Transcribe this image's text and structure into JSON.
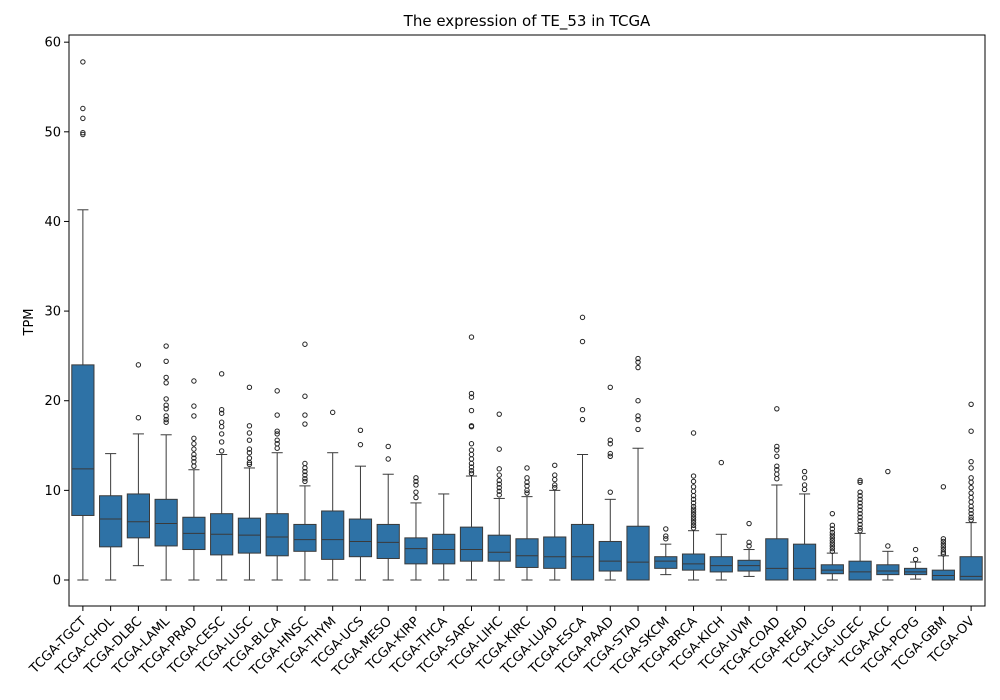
{
  "chart_data": {
    "type": "box",
    "title": "The expression of TE_53 in TCGA",
    "xlabel": "",
    "ylabel": "TPM",
    "ylim": [
      -2.9,
      60.8
    ],
    "yticks": [
      0,
      10,
      20,
      30,
      40,
      50,
      60
    ],
    "box_color": "#2e72a6",
    "grid": false,
    "categories": [
      "TCGA-TGCT",
      "TCGA-CHOL",
      "TCGA-DLBC",
      "TCGA-LAML",
      "TCGA-PRAD",
      "TCGA-CESC",
      "TCGA-LUSC",
      "TCGA-BLCA",
      "TCGA-HNSC",
      "TCGA-THYM",
      "TCGA-UCS",
      "TCGA-MESO",
      "TCGA-KIRP",
      "TCGA-THCA",
      "TCGA-SARC",
      "TCGA-LIHC",
      "TCGA-KIRC",
      "TCGA-LUAD",
      "TCGA-ESCA",
      "TCGA-PAAD",
      "TCGA-STAD",
      "TCGA-SKCM",
      "TCGA-BRCA",
      "TCGA-KICH",
      "TCGA-UVM",
      "TCGA-COAD",
      "TCGA-READ",
      "TCGA-LGG",
      "TCGA-UCEC",
      "TCGA-ACC",
      "TCGA-PCPG",
      "TCGA-GBM",
      "TCGA-OV"
    ],
    "boxes": [
      {
        "whislo": 0,
        "q1": 7.2,
        "med": 12.4,
        "q3": 24.0,
        "whishi": 41.3,
        "fliers": [
          57.8,
          52.6,
          51.5,
          49.9,
          49.7
        ]
      },
      {
        "whislo": 0,
        "q1": 3.7,
        "med": 6.8,
        "q3": 9.4,
        "whishi": 14.1,
        "fliers": []
      },
      {
        "whislo": 1.6,
        "q1": 4.7,
        "med": 6.5,
        "q3": 9.6,
        "whishi": 16.3,
        "fliers": [
          24.0,
          18.1
        ]
      },
      {
        "whislo": 0,
        "q1": 3.8,
        "med": 6.3,
        "q3": 9.0,
        "whishi": 16.2,
        "fliers": [
          26.1,
          24.4,
          22.6,
          22.0,
          20.2,
          19.5,
          19.1,
          18.3,
          17.9,
          17.6
        ]
      },
      {
        "whislo": 0,
        "q1": 3.4,
        "med": 5.2,
        "q3": 7.0,
        "whishi": 12.3,
        "fliers": [
          22.2,
          19.4,
          18.3,
          15.8,
          15.2,
          14.6,
          14.0,
          13.6,
          13.2,
          12.7
        ]
      },
      {
        "whislo": 0,
        "q1": 2.8,
        "med": 5.1,
        "q3": 7.4,
        "whishi": 14.0,
        "fliers": [
          23.0,
          19.0,
          18.6,
          17.6,
          17.1,
          16.3,
          15.4,
          14.4
        ]
      },
      {
        "whislo": 0,
        "q1": 3.0,
        "med": 5.0,
        "q3": 6.9,
        "whishi": 12.5,
        "fliers": [
          21.5,
          17.2,
          16.4,
          15.6,
          14.6,
          14.2,
          13.6,
          13.1,
          12.9
        ]
      },
      {
        "whislo": 0,
        "q1": 2.7,
        "med": 4.8,
        "q3": 7.4,
        "whishi": 14.2,
        "fliers": [
          21.1,
          18.4,
          16.6,
          16.3,
          15.6,
          15.2,
          14.7
        ]
      },
      {
        "whislo": 0,
        "q1": 3.2,
        "med": 4.5,
        "q3": 6.2,
        "whishi": 10.5,
        "fliers": [
          26.3,
          20.5,
          18.4,
          17.4,
          13.0,
          12.5,
          12.1,
          11.7,
          11.3,
          11.0
        ]
      },
      {
        "whislo": 0,
        "q1": 2.3,
        "med": 4.5,
        "q3": 7.7,
        "whishi": 14.2,
        "fliers": [
          18.7
        ]
      },
      {
        "whislo": 0,
        "q1": 2.6,
        "med": 4.3,
        "q3": 6.8,
        "whishi": 12.7,
        "fliers": [
          16.7,
          15.1
        ]
      },
      {
        "whislo": 0,
        "q1": 2.4,
        "med": 4.2,
        "q3": 6.2,
        "whishi": 11.8,
        "fliers": [
          14.9,
          13.5
        ]
      },
      {
        "whislo": 0,
        "q1": 1.8,
        "med": 3.5,
        "q3": 4.7,
        "whishi": 8.6,
        "fliers": [
          11.4,
          11.0,
          10.6,
          9.8,
          9.2
        ]
      },
      {
        "whislo": 0,
        "q1": 1.8,
        "med": 3.4,
        "q3": 5.1,
        "whishi": 9.6,
        "fliers": []
      },
      {
        "whislo": 0,
        "q1": 2.1,
        "med": 3.4,
        "q3": 5.9,
        "whishi": 11.6,
        "fliers": [
          27.1,
          20.8,
          20.4,
          18.9,
          17.2,
          17.1,
          15.2,
          14.5,
          14.0,
          13.5,
          13.0,
          12.6,
          12.2,
          11.9
        ]
      },
      {
        "whislo": 0,
        "q1": 2.1,
        "med": 3.1,
        "q3": 5.0,
        "whishi": 9.1,
        "fliers": [
          18.5,
          14.6,
          12.4,
          11.7,
          11.1,
          10.7,
          10.3,
          9.9,
          9.5
        ]
      },
      {
        "whislo": 0,
        "q1": 1.4,
        "med": 2.7,
        "q3": 4.6,
        "whishi": 9.3,
        "fliers": [
          12.5,
          11.4,
          10.9,
          10.5,
          10.0,
          9.7
        ]
      },
      {
        "whislo": 0,
        "q1": 1.3,
        "med": 2.6,
        "q3": 4.8,
        "whishi": 10.0,
        "fliers": [
          12.8,
          11.7,
          11.2,
          10.6,
          10.3
        ]
      },
      {
        "whislo": 0,
        "q1": 0,
        "med": 2.6,
        "q3": 6.2,
        "whishi": 14.0,
        "fliers": [
          29.3,
          26.6,
          19.0,
          17.9
        ]
      },
      {
        "whislo": 0,
        "q1": 1.0,
        "med": 2.1,
        "q3": 4.3,
        "whishi": 9.0,
        "fliers": [
          21.5,
          15.6,
          15.2,
          14.1,
          13.8,
          9.8
        ]
      },
      {
        "whislo": 0,
        "q1": 0,
        "med": 2.0,
        "q3": 6.0,
        "whishi": 14.7,
        "fliers": [
          24.7,
          24.3,
          23.7,
          20.0,
          18.3,
          17.9,
          16.8
        ]
      },
      {
        "whislo": 0.6,
        "q1": 1.3,
        "med": 2.1,
        "q3": 2.6,
        "whishi": 4.0,
        "fliers": [
          5.7,
          4.9,
          4.6
        ]
      },
      {
        "whislo": 0,
        "q1": 1.1,
        "med": 1.8,
        "q3": 2.9,
        "whishi": 5.5,
        "fliers": [
          16.4,
          11.6,
          11.0,
          10.4,
          9.9,
          9.4,
          9.0,
          8.6,
          8.2,
          7.9,
          7.6,
          7.3,
          7.0,
          6.7,
          6.4,
          6.1,
          5.8
        ]
      },
      {
        "whislo": 0,
        "q1": 0.9,
        "med": 1.6,
        "q3": 2.6,
        "whishi": 5.1,
        "fliers": [
          13.1
        ]
      },
      {
        "whislo": 0.4,
        "q1": 1.0,
        "med": 1.6,
        "q3": 2.2,
        "whishi": 3.4,
        "fliers": [
          6.3,
          4.2,
          3.8
        ]
      },
      {
        "whislo": 0,
        "q1": 0,
        "med": 1.3,
        "q3": 4.6,
        "whishi": 10.6,
        "fliers": [
          19.1,
          14.9,
          14.5,
          13.8,
          12.7,
          12.3,
          11.8,
          11.3
        ]
      },
      {
        "whislo": 0,
        "q1": 0,
        "med": 1.3,
        "q3": 4.0,
        "whishi": 9.6,
        "fliers": [
          12.1,
          11.4,
          10.6,
          10.1
        ]
      },
      {
        "whislo": 0,
        "q1": 0.7,
        "med": 1.1,
        "q3": 1.7,
        "whishi": 3.0,
        "fliers": [
          7.4,
          6.1,
          5.7,
          5.3,
          5.0,
          4.7,
          4.4,
          4.1,
          3.8,
          3.5,
          3.2
        ]
      },
      {
        "whislo": 0,
        "q1": 0,
        "med": 0.9,
        "q3": 2.1,
        "whishi": 5.2,
        "fliers": [
          11.1,
          10.9,
          9.8,
          9.4,
          9.0,
          8.6,
          8.2,
          7.8,
          7.4,
          7.0,
          6.6,
          6.2,
          5.8,
          5.5
        ]
      },
      {
        "whislo": 0,
        "q1": 0.6,
        "med": 1.0,
        "q3": 1.7,
        "whishi": 3.2,
        "fliers": [
          12.1,
          3.8
        ]
      },
      {
        "whislo": 0.1,
        "q1": 0.6,
        "med": 0.9,
        "q3": 1.3,
        "whishi": 2.0,
        "fliers": [
          3.4,
          2.3
        ]
      },
      {
        "whislo": 0,
        "q1": 0,
        "med": 0.5,
        "q3": 1.1,
        "whishi": 2.7,
        "fliers": [
          10.4,
          4.6,
          4.3,
          4.0,
          3.7,
          3.4,
          3.1,
          2.9
        ]
      },
      {
        "whislo": 0,
        "q1": 0,
        "med": 0.4,
        "q3": 2.6,
        "whishi": 6.4,
        "fliers": [
          19.6,
          16.6,
          13.2,
          12.5,
          11.4,
          10.9,
          10.3,
          9.7,
          9.2,
          8.7,
          8.2,
          7.8,
          7.4,
          7.0,
          6.7
        ]
      }
    ]
  }
}
